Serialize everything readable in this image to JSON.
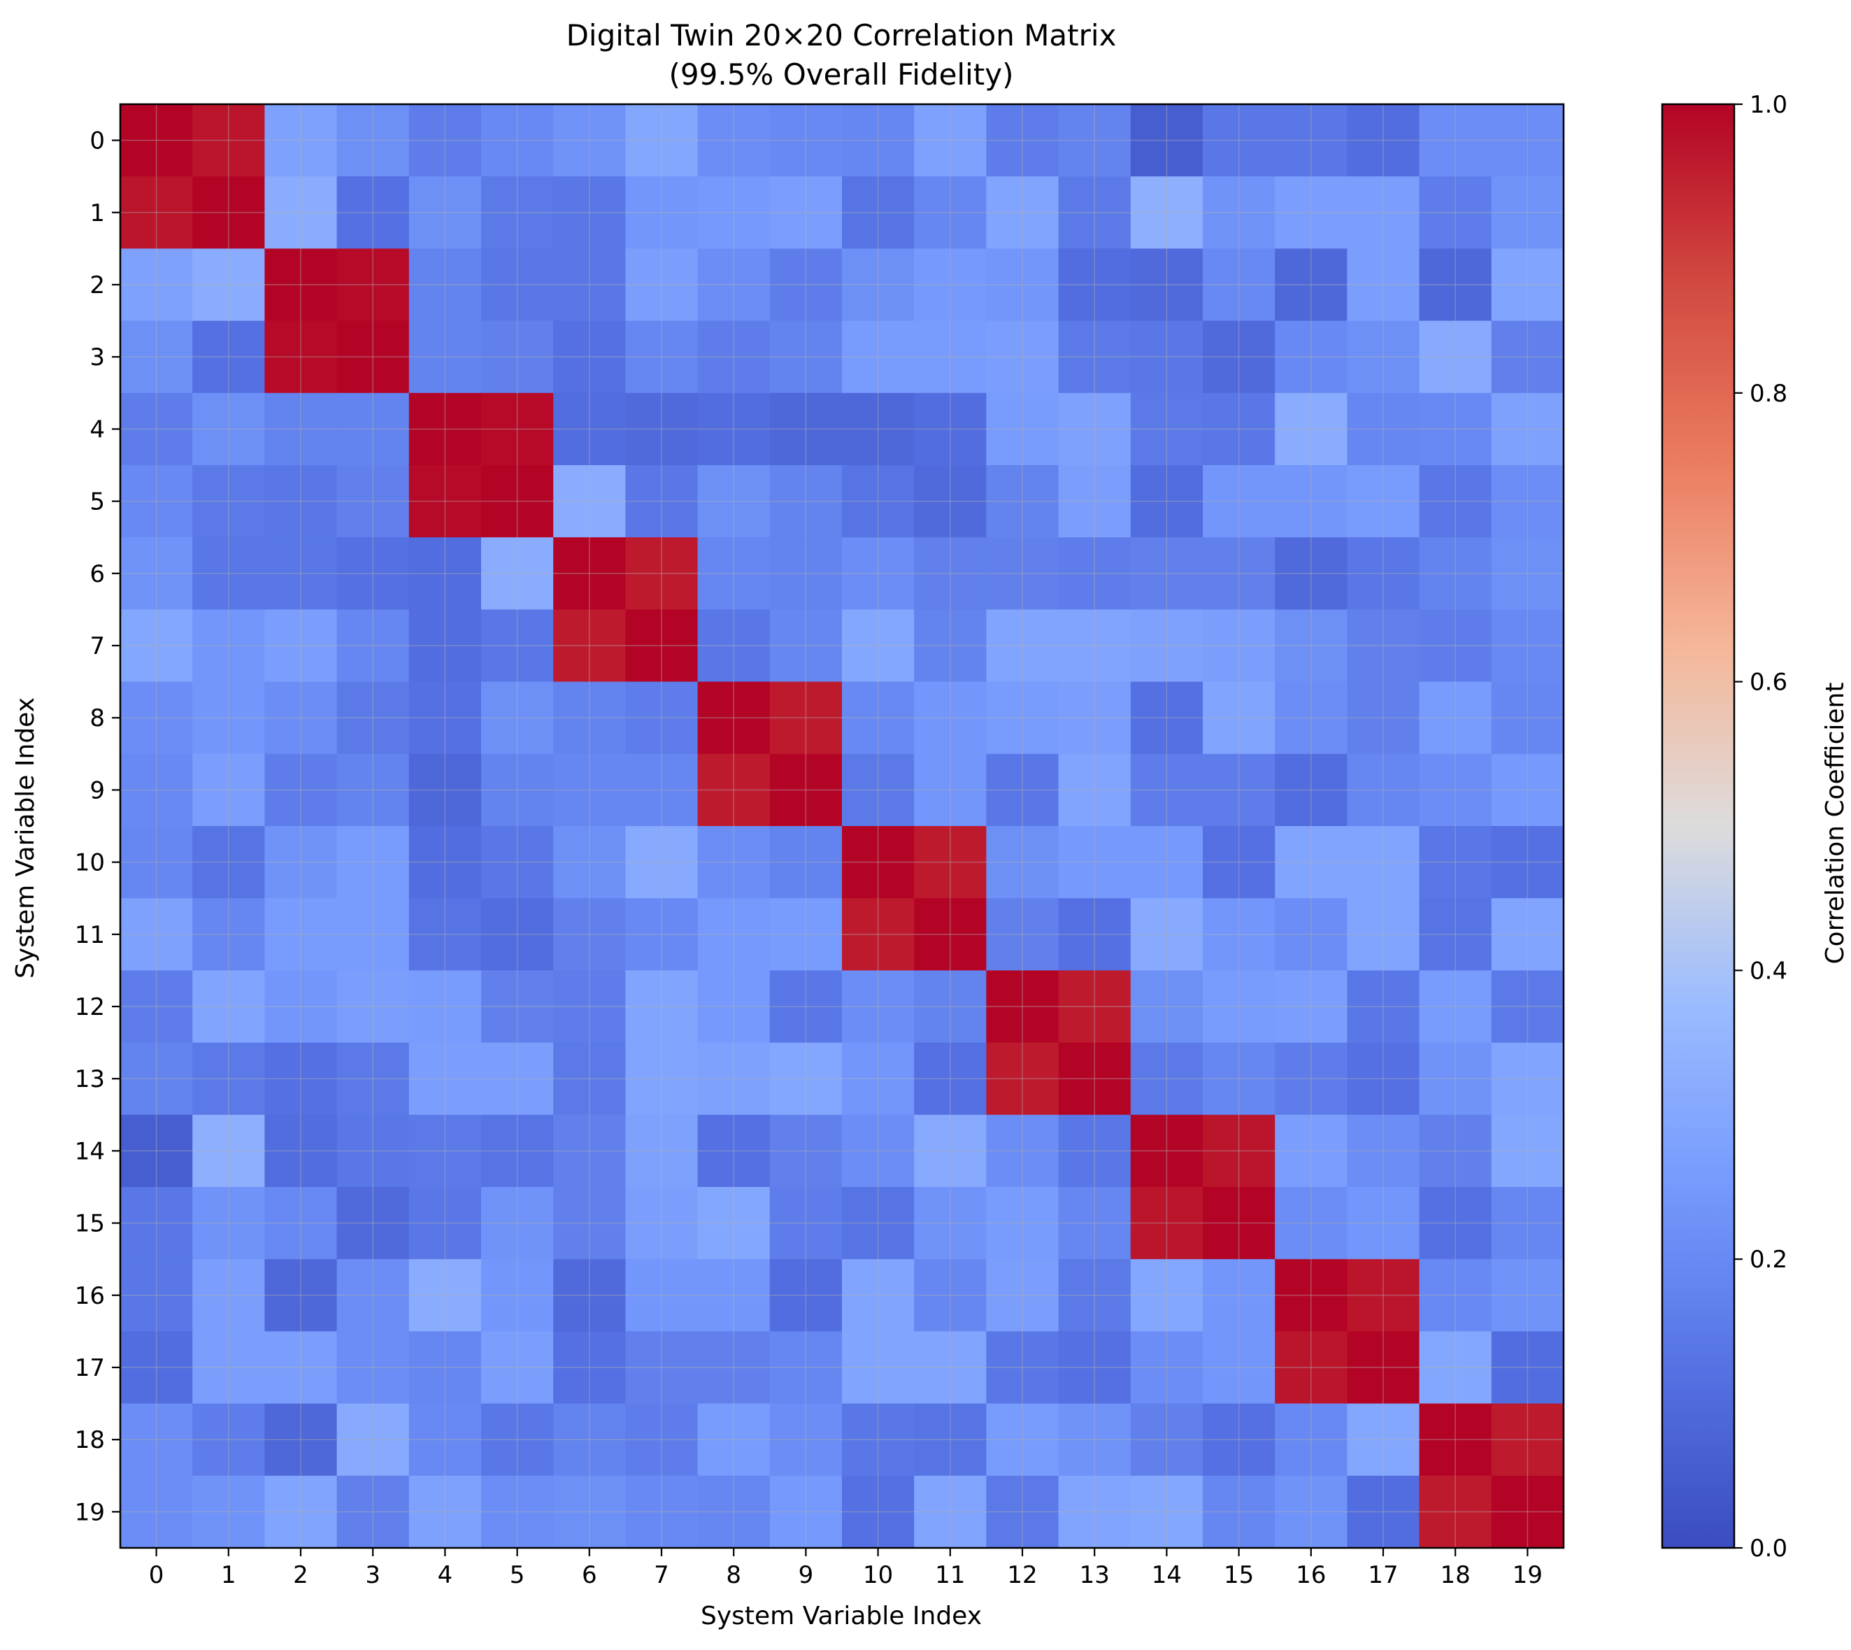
{
  "chart_data": {
    "type": "heatmap",
    "title": "Digital Twin 20×20 Correlation Matrix",
    "subtitle": "(99.5% Overall Fidelity)",
    "xlabel": "System Variable Index",
    "ylabel": "System Variable Index",
    "x_ticks": [
      "0",
      "1",
      "2",
      "3",
      "4",
      "5",
      "6",
      "7",
      "8",
      "9",
      "10",
      "11",
      "12",
      "13",
      "14",
      "15",
      "16",
      "17",
      "18",
      "19"
    ],
    "y_ticks": [
      "0",
      "1",
      "2",
      "3",
      "4",
      "5",
      "6",
      "7",
      "8",
      "9",
      "10",
      "11",
      "12",
      "13",
      "14",
      "15",
      "16",
      "17",
      "18",
      "19"
    ],
    "colormap": "coolwarm",
    "vmin": 0.0,
    "vmax": 1.0,
    "grid": true,
    "colorbar": {
      "label": "Correlation Coefficient",
      "ticks": [
        "0.0",
        "0.2",
        "0.4",
        "0.6",
        "0.8",
        "1.0"
      ],
      "tick_values": [
        0.0,
        0.2,
        0.4,
        0.6,
        0.8,
        1.0
      ]
    },
    "matrix": [
      [
        1.0,
        0.97,
        0.28,
        0.22,
        0.16,
        0.2,
        0.23,
        0.3,
        0.21,
        0.2,
        0.19,
        0.28,
        0.16,
        0.18,
        0.06,
        0.14,
        0.14,
        0.11,
        0.21,
        0.21
      ],
      [
        0.97,
        1.0,
        0.32,
        0.12,
        0.22,
        0.15,
        0.14,
        0.24,
        0.25,
        0.27,
        0.13,
        0.19,
        0.29,
        0.15,
        0.33,
        0.23,
        0.27,
        0.27,
        0.16,
        0.23
      ],
      [
        0.28,
        0.32,
        1.0,
        0.99,
        0.18,
        0.14,
        0.14,
        0.27,
        0.21,
        0.16,
        0.22,
        0.25,
        0.24,
        0.11,
        0.1,
        0.2,
        0.09,
        0.27,
        0.09,
        0.29
      ],
      [
        0.22,
        0.12,
        0.99,
        1.0,
        0.18,
        0.17,
        0.12,
        0.19,
        0.16,
        0.18,
        0.26,
        0.26,
        0.27,
        0.15,
        0.14,
        0.1,
        0.2,
        0.22,
        0.31,
        0.17
      ],
      [
        0.16,
        0.22,
        0.18,
        0.18,
        1.0,
        0.99,
        0.11,
        0.1,
        0.11,
        0.09,
        0.09,
        0.11,
        0.26,
        0.28,
        0.15,
        0.14,
        0.32,
        0.19,
        0.2,
        0.28
      ],
      [
        0.2,
        0.15,
        0.14,
        0.17,
        0.99,
        1.0,
        0.32,
        0.14,
        0.22,
        0.18,
        0.13,
        0.1,
        0.18,
        0.27,
        0.11,
        0.24,
        0.24,
        0.26,
        0.14,
        0.21
      ],
      [
        0.23,
        0.14,
        0.14,
        0.12,
        0.11,
        0.32,
        1.0,
        0.96,
        0.19,
        0.18,
        0.21,
        0.17,
        0.17,
        0.16,
        0.17,
        0.17,
        0.1,
        0.14,
        0.18,
        0.22
      ],
      [
        0.3,
        0.24,
        0.27,
        0.19,
        0.11,
        0.14,
        0.96,
        1.0,
        0.14,
        0.19,
        0.3,
        0.18,
        0.29,
        0.29,
        0.28,
        0.27,
        0.22,
        0.17,
        0.16,
        0.2
      ],
      [
        0.21,
        0.24,
        0.21,
        0.15,
        0.12,
        0.22,
        0.18,
        0.16,
        1.0,
        0.96,
        0.2,
        0.24,
        0.26,
        0.27,
        0.12,
        0.29,
        0.21,
        0.17,
        0.26,
        0.19
      ],
      [
        0.2,
        0.27,
        0.16,
        0.18,
        0.09,
        0.18,
        0.19,
        0.19,
        0.96,
        1.0,
        0.15,
        0.24,
        0.14,
        0.29,
        0.16,
        0.16,
        0.11,
        0.19,
        0.21,
        0.25
      ],
      [
        0.19,
        0.13,
        0.23,
        0.26,
        0.11,
        0.14,
        0.22,
        0.31,
        0.21,
        0.18,
        1.0,
        0.96,
        0.22,
        0.25,
        0.25,
        0.12,
        0.29,
        0.29,
        0.14,
        0.12
      ],
      [
        0.28,
        0.19,
        0.26,
        0.26,
        0.13,
        0.11,
        0.17,
        0.2,
        0.25,
        0.26,
        0.96,
        1.0,
        0.17,
        0.12,
        0.31,
        0.24,
        0.21,
        0.29,
        0.13,
        0.29
      ],
      [
        0.16,
        0.29,
        0.24,
        0.27,
        0.26,
        0.17,
        0.16,
        0.29,
        0.25,
        0.14,
        0.21,
        0.18,
        1.0,
        0.96,
        0.22,
        0.26,
        0.27,
        0.14,
        0.26,
        0.15
      ],
      [
        0.18,
        0.15,
        0.12,
        0.15,
        0.27,
        0.27,
        0.15,
        0.29,
        0.28,
        0.3,
        0.24,
        0.12,
        0.96,
        1.0,
        0.15,
        0.19,
        0.16,
        0.12,
        0.23,
        0.29
      ],
      [
        0.06,
        0.33,
        0.11,
        0.14,
        0.15,
        0.13,
        0.17,
        0.28,
        0.12,
        0.17,
        0.21,
        0.31,
        0.21,
        0.14,
        1.0,
        0.97,
        0.27,
        0.21,
        0.17,
        0.3
      ],
      [
        0.14,
        0.23,
        0.2,
        0.1,
        0.14,
        0.23,
        0.17,
        0.27,
        0.3,
        0.16,
        0.13,
        0.23,
        0.26,
        0.19,
        0.97,
        1.0,
        0.21,
        0.24,
        0.12,
        0.19
      ],
      [
        0.14,
        0.27,
        0.09,
        0.21,
        0.32,
        0.24,
        0.1,
        0.24,
        0.24,
        0.11,
        0.29,
        0.19,
        0.27,
        0.15,
        0.3,
        0.24,
        1.0,
        0.97,
        0.2,
        0.23
      ],
      [
        0.11,
        0.27,
        0.27,
        0.21,
        0.19,
        0.27,
        0.12,
        0.17,
        0.17,
        0.19,
        0.29,
        0.29,
        0.14,
        0.12,
        0.21,
        0.24,
        0.97,
        1.0,
        0.3,
        0.11
      ],
      [
        0.21,
        0.16,
        0.09,
        0.31,
        0.2,
        0.14,
        0.18,
        0.16,
        0.26,
        0.21,
        0.14,
        0.13,
        0.26,
        0.23,
        0.17,
        0.12,
        0.2,
        0.3,
        1.0,
        0.96
      ],
      [
        0.21,
        0.23,
        0.29,
        0.17,
        0.28,
        0.21,
        0.22,
        0.2,
        0.19,
        0.25,
        0.12,
        0.29,
        0.15,
        0.29,
        0.3,
        0.19,
        0.23,
        0.11,
        0.96,
        1.0
      ]
    ]
  }
}
